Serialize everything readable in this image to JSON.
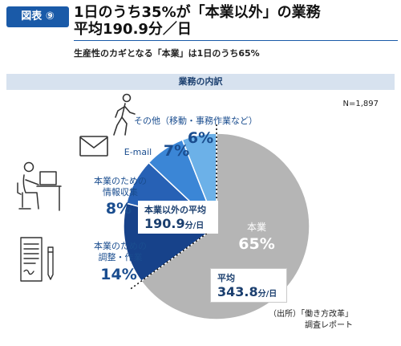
{
  "figure": {
    "badge": "図表 ⑨",
    "title_line1": "1日のうち35%が「本業以外」の業務",
    "title_line2": "平均190.9分／日",
    "subtitle": "生産性のカギとなる「本業」は1日のうち65%",
    "band_label": "業務の内訳",
    "n_label": "N=1,897",
    "source_line1": "（出所）「働き方改革」",
    "source_line2": "調査レポート"
  },
  "chart_data": {
    "type": "pie",
    "start": "12 o'clock, clockwise",
    "slices": [
      {
        "key": "core",
        "name": "本業",
        "value": 65,
        "label": "65%",
        "color": "#b5b5b5"
      },
      {
        "key": "coord",
        "name": "本業のための調整・作業",
        "value": 14,
        "label": "14%",
        "color": "#17428a"
      },
      {
        "key": "info",
        "name": "本業のための情報収集",
        "value": 8,
        "label": "8%",
        "color": "#2761b5"
      },
      {
        "key": "email",
        "name": "E-mail",
        "value": 7,
        "label": "7%",
        "color": "#3b86d6"
      },
      {
        "key": "other",
        "name": "その他（移動・事務作業など）",
        "value": 6,
        "label": "6%",
        "color": "#6cb1e8"
      }
    ],
    "labels": {
      "core_name": "本業",
      "core_pct": "65%",
      "coord_name_1": "本業のための",
      "coord_name_2": "調整・作業",
      "coord_pct": "14%",
      "info_name_1": "本業のための",
      "info_name_2": "情報収集",
      "info_pct": "8%",
      "email_name": "E-mail",
      "email_pct": "7%",
      "other_name": "その他（移動・事務作業など）",
      "other_pct": "6%"
    },
    "averages": {
      "non_core_head": "本業以外の平均",
      "non_core_value": "190.9",
      "non_core_unit": "分/日",
      "core_head": "平均",
      "core_value": "343.8",
      "core_unit": "分/日"
    }
  },
  "icons": {
    "walking": "walking-person-icon",
    "mail": "envelope-icon",
    "desk": "person-at-desk-icon",
    "document": "document-pen-icon"
  }
}
